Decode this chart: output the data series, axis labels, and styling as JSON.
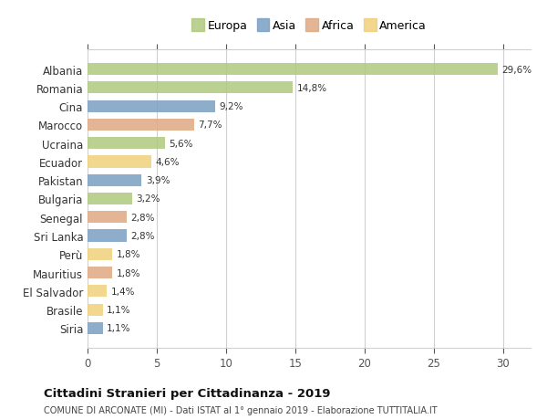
{
  "categories": [
    "Albania",
    "Romania",
    "Cina",
    "Marocco",
    "Ucraina",
    "Ecuador",
    "Pakistan",
    "Bulgaria",
    "Senegal",
    "Sri Lanka",
    "Perù",
    "Mauritius",
    "El Salvador",
    "Brasile",
    "Siria"
  ],
  "values": [
    29.6,
    14.8,
    9.2,
    7.7,
    5.6,
    4.6,
    3.9,
    3.2,
    2.8,
    2.8,
    1.8,
    1.8,
    1.4,
    1.1,
    1.1
  ],
  "labels": [
    "29,6%",
    "14,8%",
    "9,2%",
    "7,7%",
    "5,6%",
    "4,6%",
    "3,9%",
    "3,2%",
    "2,8%",
    "2,8%",
    "1,8%",
    "1,8%",
    "1,4%",
    "1,1%",
    "1,1%"
  ],
  "continent": [
    "Europa",
    "Europa",
    "Asia",
    "Africa",
    "Europa",
    "America",
    "Asia",
    "Europa",
    "Africa",
    "Asia",
    "America",
    "Africa",
    "America",
    "America",
    "Asia"
  ],
  "colors": {
    "Europa": "#aec97e",
    "Asia": "#7a9fc2",
    "Africa": "#e0a882",
    "America": "#f0d07a"
  },
  "legend_labels": [
    "Europa",
    "Asia",
    "Africa",
    "America"
  ],
  "legend_colors": [
    "#aec97e",
    "#7a9fc2",
    "#e0a882",
    "#f0d07a"
  ],
  "xlim": [
    0,
    32
  ],
  "xticks": [
    0,
    5,
    10,
    15,
    20,
    25,
    30
  ],
  "title": "Cittadini Stranieri per Cittadinanza - 2019",
  "subtitle": "COMUNE DI ARCONATE (MI) - Dati ISTAT al 1° gennaio 2019 - Elaborazione TUTTITALIA.IT",
  "background_color": "#ffffff",
  "grid_color": "#d0d0d0"
}
